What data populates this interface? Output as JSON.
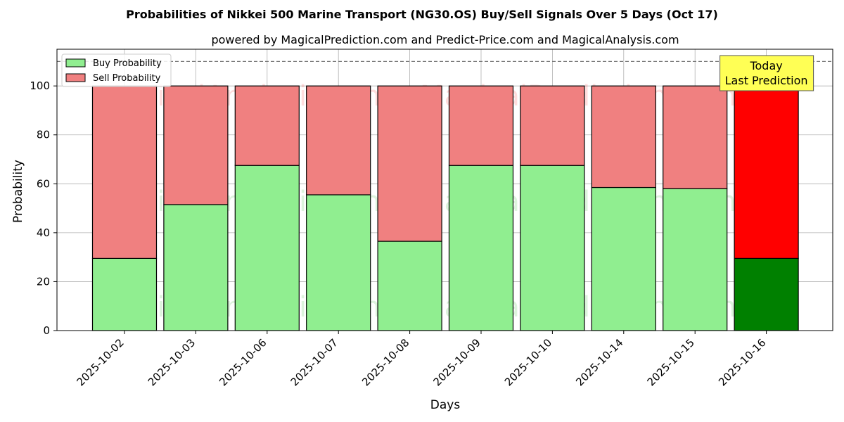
{
  "chart_data": {
    "type": "bar",
    "stacked": true,
    "title": "Probabilities of Nikkei 500 Marine Transport (NG30.OS) Buy/Sell Signals Over 5 Days (Oct 17)",
    "subtitle": "powered by MagicalPrediction.com and Predict-Price.com and MagicalAnalysis.com",
    "xlabel": "Days",
    "ylabel": "Probability",
    "ylim": [
      0,
      115
    ],
    "yticks": [
      0,
      20,
      40,
      60,
      80,
      100
    ],
    "reference_line": 110,
    "grid": true,
    "legend_position": "upper-left",
    "categories": [
      "2025-10-02",
      "2025-10-03",
      "2025-10-06",
      "2025-10-07",
      "2025-10-08",
      "2025-10-09",
      "2025-10-10",
      "2025-10-14",
      "2025-10-15",
      "2025-10-16"
    ],
    "series": [
      {
        "name": "Buy Probability",
        "color": "#90ee90",
        "highlight_color": "#008000",
        "values": [
          29.5,
          51.5,
          67.5,
          55.5,
          36.5,
          67.5,
          67.5,
          58.5,
          58,
          29.5
        ]
      },
      {
        "name": "Sell Probability",
        "color": "#f08080",
        "highlight_color": "#ff0000",
        "values": [
          70.5,
          48.5,
          32.5,
          44.5,
          63.5,
          32.5,
          32.5,
          41.5,
          42,
          70.5
        ]
      }
    ],
    "highlighted_category": "2025-10-16",
    "annotation": {
      "line1": "Today",
      "line2": "Last Prediction",
      "color": "#ffff55"
    },
    "watermarks": [
      "MagicalAnalysis.com",
      "MagicalPrediction.com"
    ]
  }
}
